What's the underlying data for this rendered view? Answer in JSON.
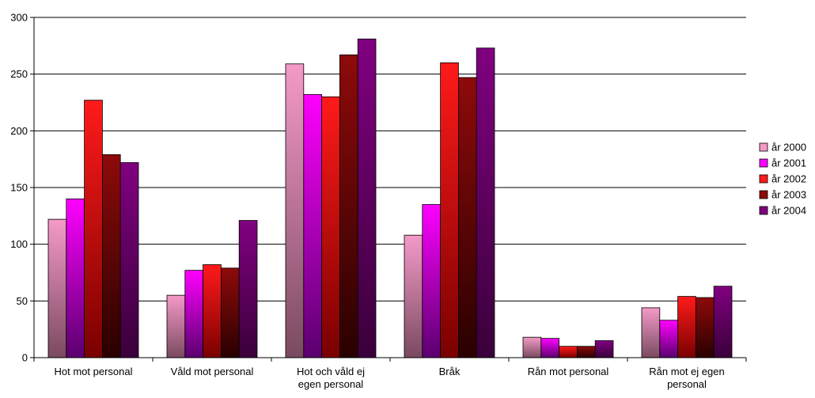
{
  "chart_data": {
    "type": "bar",
    "categories": [
      [
        "Hot mot personal"
      ],
      [
        "Våld mot personal"
      ],
      [
        "Hot och våld ej",
        "egen personal"
      ],
      [
        "Bråk"
      ],
      [
        "Rån mot personal"
      ],
      [
        "Rån mot ej egen",
        "personal"
      ]
    ],
    "series": [
      {
        "name": "år 2000",
        "values": [
          122,
          55,
          259,
          108,
          18,
          44
        ],
        "color_top": "#f49ac8",
        "color_bottom": "#7a4a60"
      },
      {
        "name": "år 2001",
        "values": [
          140,
          77,
          232,
          135,
          17,
          33
        ],
        "color_top": "#ff00ff",
        "color_bottom": "#5a006e"
      },
      {
        "name": "år 2002",
        "values": [
          227,
          82,
          230,
          260,
          10,
          54
        ],
        "color_top": "#ff1a1a",
        "color_bottom": "#7a0000"
      },
      {
        "name": "år 2003",
        "values": [
          179,
          79,
          267,
          247,
          10,
          53
        ],
        "color_top": "#8e0a0a",
        "color_bottom": "#2a0000"
      },
      {
        "name": "år 2004",
        "values": [
          172,
          121,
          281,
          273,
          15,
          63
        ],
        "color_top": "#800080",
        "color_bottom": "#3a003a"
      }
    ],
    "yticks": [
      0,
      50,
      100,
      150,
      200,
      250,
      300
    ],
    "ylim": [
      0,
      300
    ],
    "grid": true,
    "legend_position": "right"
  }
}
